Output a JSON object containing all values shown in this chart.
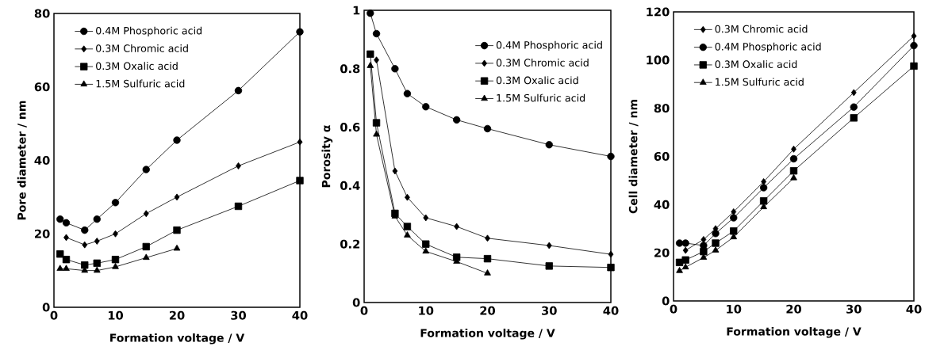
{
  "chart_data": [
    {
      "type": "line",
      "xlabel": "Formation voltage / V",
      "ylabel": "Pore diameter / nm",
      "xlim": [
        0,
        40
      ],
      "ylim": [
        0,
        80
      ],
      "xticks": [
        0,
        10,
        20,
        30,
        40
      ],
      "yticks": [
        0,
        20,
        40,
        60,
        80
      ],
      "legend": "top left",
      "grid": false,
      "line_style": "solid",
      "series": [
        {
          "name": "0.4M Phosphoric acid",
          "color": "#000000",
          "marker": "circle",
          "x": [
            1,
            2,
            5,
            7,
            10,
            15,
            20,
            30,
            40
          ],
          "values": [
            24,
            23,
            21,
            24,
            28.5,
            37.5,
            45.5,
            59,
            75
          ]
        },
        {
          "name": "0.3M Chromic acid",
          "color": "#000000",
          "marker": "diamond",
          "x": [
            2,
            5,
            7,
            10,
            15,
            20,
            30,
            40
          ],
          "values": [
            19,
            17,
            18,
            20,
            25.5,
            30,
            38.5,
            45
          ]
        },
        {
          "name": "0.3M Oxalic acid",
          "color": "#000000",
          "marker": "square",
          "x": [
            1,
            2,
            5,
            7,
            10,
            15,
            20,
            30,
            40
          ],
          "values": [
            14.5,
            13,
            11.5,
            12,
            13,
            16.5,
            21,
            27.5,
            34.5
          ]
        },
        {
          "name": "1.5M Sulfuric acid",
          "color": "#000000",
          "marker": "triangle",
          "x": [
            1,
            2,
            5,
            7,
            10,
            15,
            20
          ],
          "values": [
            10.5,
            10.5,
            10,
            10,
            11,
            13.5,
            16
          ]
        }
      ]
    },
    {
      "type": "line",
      "xlabel": "Formation voltage / V",
      "ylabel": "Porosity α",
      "xlim": [
        0,
        40
      ],
      "ylim": [
        0,
        1
      ],
      "xticks": [
        0,
        10,
        20,
        30,
        40
      ],
      "yticks": [
        0,
        0.2,
        0.4,
        0.6,
        0.8,
        1
      ],
      "legend": "top right",
      "grid": false,
      "line_style": "solid",
      "series": [
        {
          "name": "0.4M Phosphoric acid",
          "color": "#000000",
          "marker": "circle",
          "x": [
            1,
            2,
            5,
            7,
            10,
            15,
            20,
            30,
            40
          ],
          "values": [
            0.99,
            0.92,
            0.8,
            0.715,
            0.67,
            0.625,
            0.595,
            0.54,
            0.5
          ]
        },
        {
          "name": "0.3M Chromic acid",
          "color": "#000000",
          "marker": "diamond",
          "x": [
            2,
            5,
            7,
            10,
            15,
            20,
            30,
            40
          ],
          "values": [
            0.83,
            0.45,
            0.36,
            0.29,
            0.26,
            0.22,
            0.195,
            0.165
          ]
        },
        {
          "name": "0.3M Oxalic acid",
          "color": "#000000",
          "marker": "square",
          "x": [
            1,
            2,
            5,
            7,
            10,
            15,
            20,
            30,
            40
          ],
          "values": [
            0.85,
            0.615,
            0.305,
            0.26,
            0.2,
            0.155,
            0.15,
            0.125,
            0.12
          ]
        },
        {
          "name": "1.5M Sulfuric acid",
          "color": "#000000",
          "marker": "triangle",
          "x": [
            1,
            2,
            5,
            7,
            10,
            15,
            20
          ],
          "values": [
            0.81,
            0.575,
            0.295,
            0.23,
            0.175,
            0.14,
            0.1
          ]
        }
      ]
    },
    {
      "type": "line",
      "xlabel": "Formation voltage / V",
      "ylabel": "Cell diameter / nm",
      "xlim": [
        0,
        40
      ],
      "ylim": [
        0,
        120
      ],
      "xticks": [
        0,
        10,
        20,
        30,
        40
      ],
      "yticks": [
        0,
        20,
        40,
        60,
        80,
        100,
        120
      ],
      "legend": "top left",
      "grid": false,
      "line_style": "solid",
      "series": [
        {
          "name": "0.3M Chromic acid",
          "color": "#000000",
          "marker": "diamond",
          "x": [
            2,
            5,
            7,
            10,
            15,
            20,
            30,
            40
          ],
          "values": [
            21,
            25.5,
            30,
            37,
            49.5,
            63,
            86.5,
            110
          ]
        },
        {
          "name": "0.4M Phosphoric acid",
          "color": "#000000",
          "marker": "circle",
          "x": [
            1,
            2,
            5,
            7,
            10,
            15,
            20,
            30,
            40
          ],
          "values": [
            24,
            24,
            23,
            28,
            34.5,
            47,
            59,
            80.5,
            106
          ]
        },
        {
          "name": "0.3M Oxalic acid",
          "color": "#000000",
          "marker": "square",
          "x": [
            1,
            2,
            5,
            7,
            10,
            15,
            20,
            30,
            40
          ],
          "values": [
            16,
            17,
            20.5,
            24,
            29,
            41.5,
            54,
            76,
            97.5
          ]
        },
        {
          "name": "1.5M Sulfuric acid",
          "color": "#000000",
          "marker": "triangle",
          "x": [
            1,
            2,
            5,
            7,
            10,
            15,
            20
          ],
          "values": [
            12.5,
            14,
            18,
            21,
            26.5,
            39,
            51
          ]
        }
      ]
    }
  ]
}
